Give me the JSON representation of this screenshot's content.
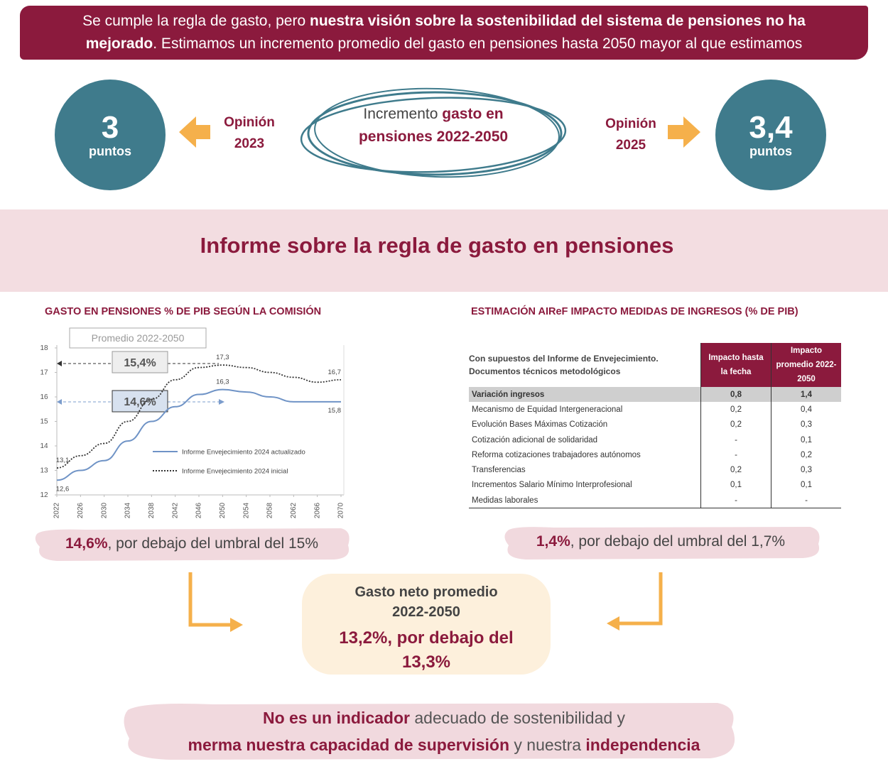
{
  "banner": {
    "lines": [
      [
        {
          "text": "Se cumple la regla de gasto, pero ",
          "bold": false
        },
        {
          "text": "nuestra visión sobre la sostenibilidad del sistema de pensiones no ha",
          "bold": true
        }
      ],
      [
        {
          "text": "mejorado",
          "bold": true
        },
        {
          "text": ". Estimamos un incremento promedio del gasto en pensiones hasta 2050 mayor al que estimamos",
          "bold": false
        }
      ]
    ]
  },
  "comparison": {
    "left": {
      "value": "3",
      "unit": "puntos",
      "label": "Opinión 2023"
    },
    "center": [
      {
        "text": "Incremento ",
        "bold": false
      },
      {
        "text": "gasto en pensiones 2022-2050",
        "bold": true
      }
    ],
    "right": {
      "value": "3,4",
      "unit": "puntos",
      "label": "Opinión 2025"
    }
  },
  "section_title": "Informe sobre la regla de gasto en pensiones",
  "left_panel": {
    "title": "GASTO EN PENSIONES % DE PIB SEGÚN LA COMISIÓN",
    "chart": {
      "type": "line",
      "x": [
        2022,
        2026,
        2030,
        2034,
        2038,
        2042,
        2046,
        2050,
        2054,
        2058,
        2062,
        2066,
        2070
      ],
      "xlim": [
        2022,
        2070
      ],
      "xticks": [
        2022,
        2026,
        2030,
        2034,
        2038,
        2042,
        2046,
        2050,
        2054,
        2058,
        2062,
        2066,
        2070
      ],
      "ylim": [
        12,
        18
      ],
      "yticks": [
        12,
        13,
        14,
        15,
        16,
        17,
        18
      ],
      "grid": false,
      "series": [
        {
          "name": "Informe Envejecimiento 2024 actualizado",
          "color": "#6f93c6",
          "dashed": false,
          "values": [
            12.6,
            13.0,
            13.4,
            14.2,
            15.0,
            15.6,
            16.1,
            16.3,
            16.2,
            16.0,
            15.8,
            15.8,
            15.8
          ],
          "value_labels": [
            "12,6",
            null,
            null,
            null,
            null,
            null,
            null,
            "16,3",
            null,
            null,
            null,
            null,
            "15,8"
          ]
        },
        {
          "name": "Informe Envejecimiento 2024 inicial",
          "color": "#333333",
          "dashed": true,
          "values": [
            13.1,
            13.6,
            14.1,
            15.0,
            15.9,
            16.7,
            17.2,
            17.3,
            17.2,
            17.0,
            16.8,
            16.6,
            16.7
          ],
          "value_labels": [
            "13,1",
            null,
            null,
            null,
            null,
            null,
            null,
            "17,3",
            null,
            null,
            null,
            null,
            "16,7"
          ]
        }
      ],
      "annotations": {
        "box_title": "Promedio 2022-2050",
        "averages": [
          "15,4%",
          "14,6%"
        ]
      }
    },
    "callout": [
      {
        "text": "14,6%",
        "bold": true
      },
      {
        "text": ", por debajo del umbral del 15%",
        "bold": false
      }
    ]
  },
  "right_panel": {
    "title": "ESTIMACIÓN AIReF  IMPACTO MEDIDAS DE INGRESOS (% DE PIB)",
    "table": {
      "note": "Con supuestos del Informe de Envejecimiento. Documentos técnicos metodológicos",
      "columns": [
        "Impacto hasta la fecha",
        "Impacto promedio 2022-2050"
      ],
      "rows": [
        [
          "Variación ingresos",
          "0,8",
          "1,4"
        ],
        [
          "Mecanismo de Equidad Intergeneracional",
          "0,2",
          "0,4"
        ],
        [
          "Evolución Bases Máximas Cotización",
          "0,2",
          "0,3"
        ],
        [
          "Cotización adicional de solidaridad",
          "-",
          "0,1"
        ],
        [
          "Reforma cotizaciones trabajadores autónomos",
          "-",
          "0,2"
        ],
        [
          "Transferencias",
          "0,2",
          "0,3"
        ],
        [
          "Incrementos Salario Mínimo Interprofesional",
          "0,1",
          "0,1"
        ],
        [
          "Medidas laborales",
          "-",
          "-"
        ]
      ]
    },
    "callout": [
      {
        "text": "1,4%",
        "bold": true
      },
      {
        "text": ", por debajo del umbral del 1,7%",
        "bold": false
      }
    ]
  },
  "center_box": {
    "heading": "Gasto neto promedio 2022-2050",
    "result": "13,2%, por debajo del 13,3%"
  },
  "footer": {
    "lines": [
      [
        {
          "text": "No es un indicador",
          "bold": true
        },
        {
          "text": " adecuado de sostenibilidad y",
          "bold": false
        }
      ],
      [
        {
          "text": "merma nuestra capacidad de supervisión",
          "bold": true
        },
        {
          "text": " y nuestra ",
          "bold": false
        },
        {
          "text": "independencia",
          "bold": true
        }
      ]
    ]
  }
}
